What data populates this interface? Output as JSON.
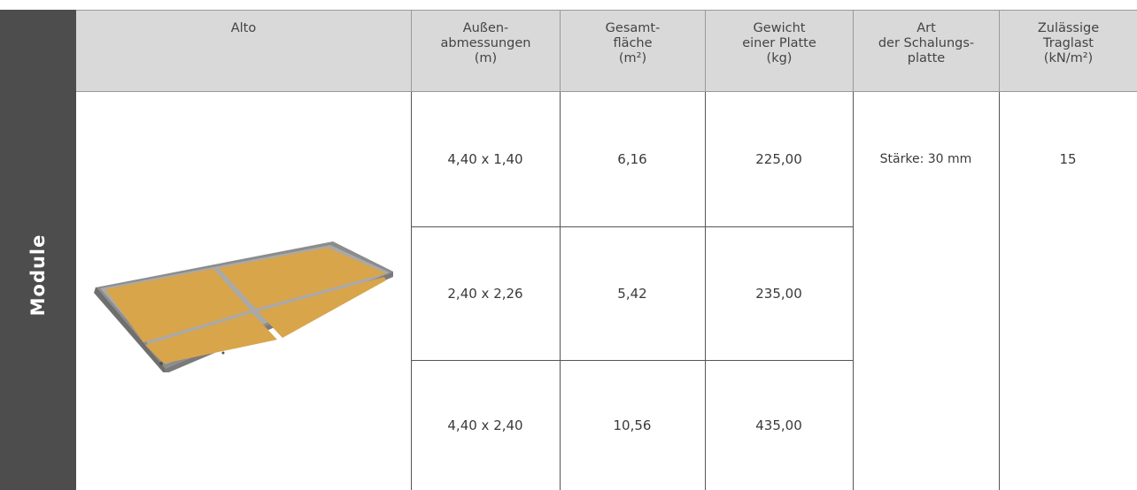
{
  "side_label": "Module",
  "header": {
    "name": "Alto",
    "dims": [
      "Außen-",
      "abmessungen",
      "(m)"
    ],
    "area": [
      "Gesamt-",
      "fläche",
      "(m²)"
    ],
    "weight": [
      "Gewicht",
      "einer Platte",
      "(kg)"
    ],
    "type": [
      "Art",
      "der Schalungs-",
      "platte"
    ],
    "load": [
      "Zulässige",
      "Traglast",
      "(kN/m²)"
    ]
  },
  "rows": [
    {
      "dims": "4,40 x 1,40",
      "area": "6,16",
      "weight": "225,00"
    },
    {
      "dims": "2,40 x 2,26",
      "area": "5,42",
      "weight": "235,00"
    },
    {
      "dims": "4,40 x 2,40",
      "area": "10,56",
      "weight": "435,00"
    }
  ],
  "type_value": "Stärke: 30 mm",
  "load_value": "15",
  "colors": {
    "header_bg": "#d9d9d9",
    "side_bg": "#4d4d4d",
    "panel_wood": "#d9a54a",
    "panel_frame": "#9b9b9b"
  }
}
